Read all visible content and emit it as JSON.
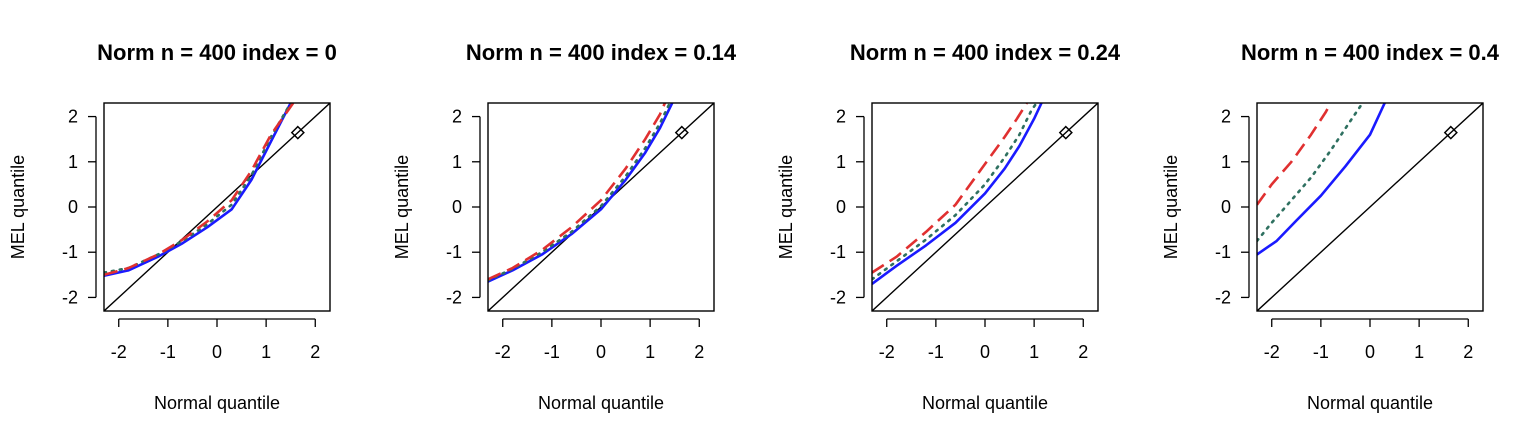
{
  "chart_data": [
    {
      "type": "line",
      "title": "Norm n = 400 index = 0",
      "xlabel": "Normal quantile",
      "ylabel": "MEL quantile",
      "xlim": [
        -2.3,
        2.3
      ],
      "ylim": [
        -2.3,
        2.3
      ],
      "x_ticks": [
        "-2",
        "-1",
        "0",
        "1",
        "2"
      ],
      "y_ticks": [
        "2",
        "1",
        "0",
        "-1",
        "-2"
      ],
      "reference_line": "y = x",
      "marker": {
        "shape": "diamond",
        "x": 1.645,
        "y": 1.645
      },
      "series": [
        {
          "style": "solid",
          "color": "#1a1aff",
          "x": [
            -2.3,
            -1.8,
            -1.2,
            -0.7,
            -0.2,
            0.3,
            0.7,
            1.1,
            1.5
          ],
          "y": [
            -1.52,
            -1.4,
            -1.1,
            -0.8,
            -0.45,
            -0.05,
            0.6,
            1.45,
            2.3
          ]
        },
        {
          "style": "dotted",
          "color": "#2e7060",
          "x": [
            -2.3,
            -1.8,
            -1.2,
            -0.7,
            -0.2,
            0.3,
            0.7,
            1.1,
            1.5
          ],
          "y": [
            -1.45,
            -1.35,
            -1.05,
            -0.75,
            -0.38,
            0.05,
            0.7,
            1.55,
            2.3
          ]
        },
        {
          "style": "dashed",
          "color": "#e03030",
          "x": [
            -2.3,
            -1.8,
            -1.2,
            -0.7,
            -0.2,
            0.3,
            0.7,
            1.1,
            1.55
          ],
          "y": [
            -1.5,
            -1.35,
            -1.05,
            -0.72,
            -0.32,
            0.15,
            0.8,
            1.6,
            2.3
          ]
        }
      ]
    },
    {
      "type": "line",
      "title": "Norm n = 400 index = 0.14",
      "xlabel": "Normal quantile",
      "ylabel": "MEL quantile",
      "xlim": [
        -2.3,
        2.3
      ],
      "ylim": [
        -2.3,
        2.3
      ],
      "x_ticks": [
        "-2",
        "-1",
        "0",
        "1",
        "2"
      ],
      "y_ticks": [
        "2",
        "1",
        "0",
        "-1",
        "-2"
      ],
      "reference_line": "y = x",
      "marker": {
        "shape": "diamond",
        "x": 1.645,
        "y": 1.645
      },
      "series": [
        {
          "style": "solid",
          "color": "#1a1aff",
          "x": [
            -2.3,
            -1.8,
            -1.2,
            -0.6,
            0.0,
            0.5,
            0.9,
            1.2,
            1.45
          ],
          "y": [
            -1.65,
            -1.4,
            -1.05,
            -0.6,
            -0.05,
            0.6,
            1.2,
            1.75,
            2.3
          ]
        },
        {
          "style": "dotted",
          "color": "#2e7060",
          "x": [
            -2.3,
            -1.8,
            -1.2,
            -0.6,
            0.0,
            0.5,
            0.9,
            1.2,
            1.4
          ],
          "y": [
            -1.62,
            -1.37,
            -1.0,
            -0.55,
            0.02,
            0.68,
            1.3,
            1.85,
            2.3
          ]
        },
        {
          "style": "dashed",
          "color": "#e03030",
          "x": [
            -2.3,
            -1.8,
            -1.2,
            -0.6,
            0.0,
            0.5,
            0.9,
            1.2,
            1.3
          ],
          "y": [
            -1.6,
            -1.35,
            -0.95,
            -0.45,
            0.15,
            0.85,
            1.5,
            2.05,
            2.3
          ]
        }
      ]
    },
    {
      "type": "line",
      "title": "Norm n = 400 index = 0.24",
      "xlabel": "Normal quantile",
      "ylabel": "MEL quantile",
      "xlim": [
        -2.3,
        2.3
      ],
      "ylim": [
        -2.3,
        2.3
      ],
      "x_ticks": [
        "-2",
        "-1",
        "0",
        "1",
        "2"
      ],
      "y_ticks": [
        "2",
        "1",
        "0",
        "-1",
        "-2"
      ],
      "reference_line": "y = x",
      "marker": {
        "shape": "diamond",
        "x": 1.645,
        "y": 1.645
      },
      "series": [
        {
          "style": "solid",
          "color": "#1a1aff",
          "x": [
            -2.3,
            -1.8,
            -1.2,
            -0.6,
            0.0,
            0.4,
            0.7,
            1.0,
            1.15
          ],
          "y": [
            -1.7,
            -1.3,
            -0.85,
            -0.35,
            0.3,
            0.85,
            1.35,
            1.95,
            2.3
          ]
        },
        {
          "style": "dotted",
          "color": "#2e7060",
          "x": [
            -2.3,
            -1.8,
            -1.2,
            -0.6,
            0.0,
            0.4,
            0.7,
            0.95,
            1.05
          ],
          "y": [
            -1.6,
            -1.2,
            -0.72,
            -0.18,
            0.5,
            1.1,
            1.6,
            2.15,
            2.3
          ]
        },
        {
          "style": "dashed",
          "color": "#e03030",
          "x": [
            -2.3,
            -1.8,
            -1.2,
            -0.6,
            0.0,
            0.4,
            0.65,
            0.85
          ],
          "y": [
            -1.45,
            -1.1,
            -0.55,
            0.05,
            0.95,
            1.55,
            1.95,
            2.3
          ]
        }
      ]
    },
    {
      "type": "line",
      "title": "Norm n = 400 index = 0.4",
      "xlabel": "Normal quantile",
      "ylabel": "MEL quantile",
      "xlim": [
        -2.3,
        2.3
      ],
      "ylim": [
        -2.3,
        2.3
      ],
      "x_ticks": [
        "-2",
        "-1",
        "0",
        "1",
        "2"
      ],
      "y_ticks": [
        "2",
        "1",
        "0",
        "-1",
        "-2"
      ],
      "reference_line": "y = x",
      "marker": {
        "shape": "diamond",
        "x": 1.645,
        "y": 1.645
      },
      "series": [
        {
          "style": "solid",
          "color": "#1a1aff",
          "x": [
            -2.3,
            -1.9,
            -1.5,
            -1.0,
            -0.5,
            0.0,
            0.3
          ],
          "y": [
            -1.05,
            -0.75,
            -0.3,
            0.25,
            0.9,
            1.6,
            2.3
          ]
        },
        {
          "style": "dotted",
          "color": "#2e7060",
          "x": [
            -2.3,
            -2.0,
            -1.6,
            -1.2,
            -0.8,
            -0.4,
            -0.15
          ],
          "y": [
            -0.75,
            -0.35,
            0.15,
            0.65,
            1.25,
            1.9,
            2.3
          ]
        },
        {
          "style": "dashed",
          "color": "#e03030",
          "x": [
            -2.3,
            -2.0,
            -1.6,
            -1.2,
            -0.9,
            -0.8
          ],
          "y": [
            0.05,
            0.5,
            1.0,
            1.6,
            2.1,
            2.3
          ]
        }
      ]
    }
  ]
}
